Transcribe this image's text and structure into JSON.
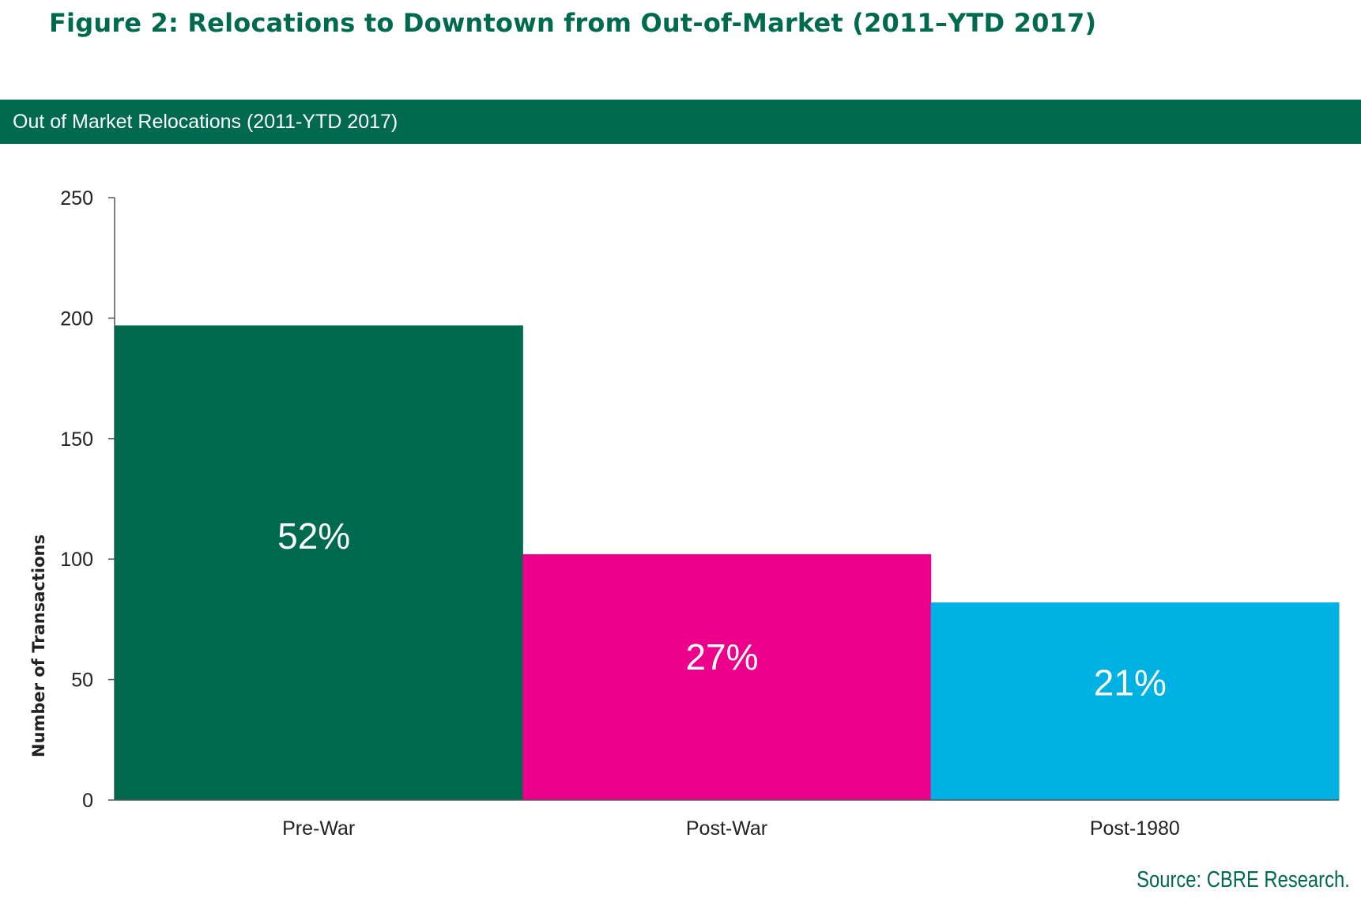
{
  "figure_title": "Figure 2: Relocations to Downtown from Out-of-Market (2011–YTD 2017)",
  "banner_title": "Out of Market Relocations (2011-YTD 2017)",
  "source": "Source: CBRE Research.",
  "chart_data": {
    "type": "bar",
    "title": "Out of Market Relocations (2011-YTD 2017)",
    "xlabel": "",
    "ylabel": "Number of Transactions",
    "ylim": [
      0,
      250
    ],
    "yticks": [
      0,
      50,
      100,
      150,
      200,
      250
    ],
    "grid": false,
    "categories": [
      "Pre-War",
      "Post-War",
      "Post-1980"
    ],
    "values": [
      197,
      102,
      82
    ],
    "data_labels": [
      "52%",
      "27%",
      "21%"
    ],
    "colors": [
      "#006a4e",
      "#ec008c",
      "#00b2e3"
    ]
  }
}
